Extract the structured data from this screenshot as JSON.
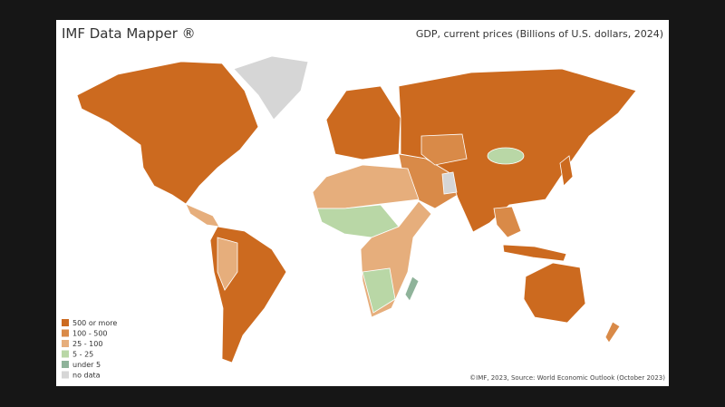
{
  "header": {
    "title": "IMF Data Mapper ®",
    "subtitle": "GDP, current prices (Billions of U.S. dollars, 2024)"
  },
  "legend": [
    {
      "label": "500 or more",
      "color": "#cc6a1f"
    },
    {
      "label": "100 - 500",
      "color": "#d98a48"
    },
    {
      "label": "25 - 100",
      "color": "#e6ae7c"
    },
    {
      "label": "5 - 25",
      "color": "#b9d7a6"
    },
    {
      "label": "under 5",
      "color": "#8fb39a"
    },
    {
      "label": "no data",
      "color": "#d6d6d6"
    }
  ],
  "source": "©IMF, 2023, Source: World Economic Outlook (October 2023)"
}
